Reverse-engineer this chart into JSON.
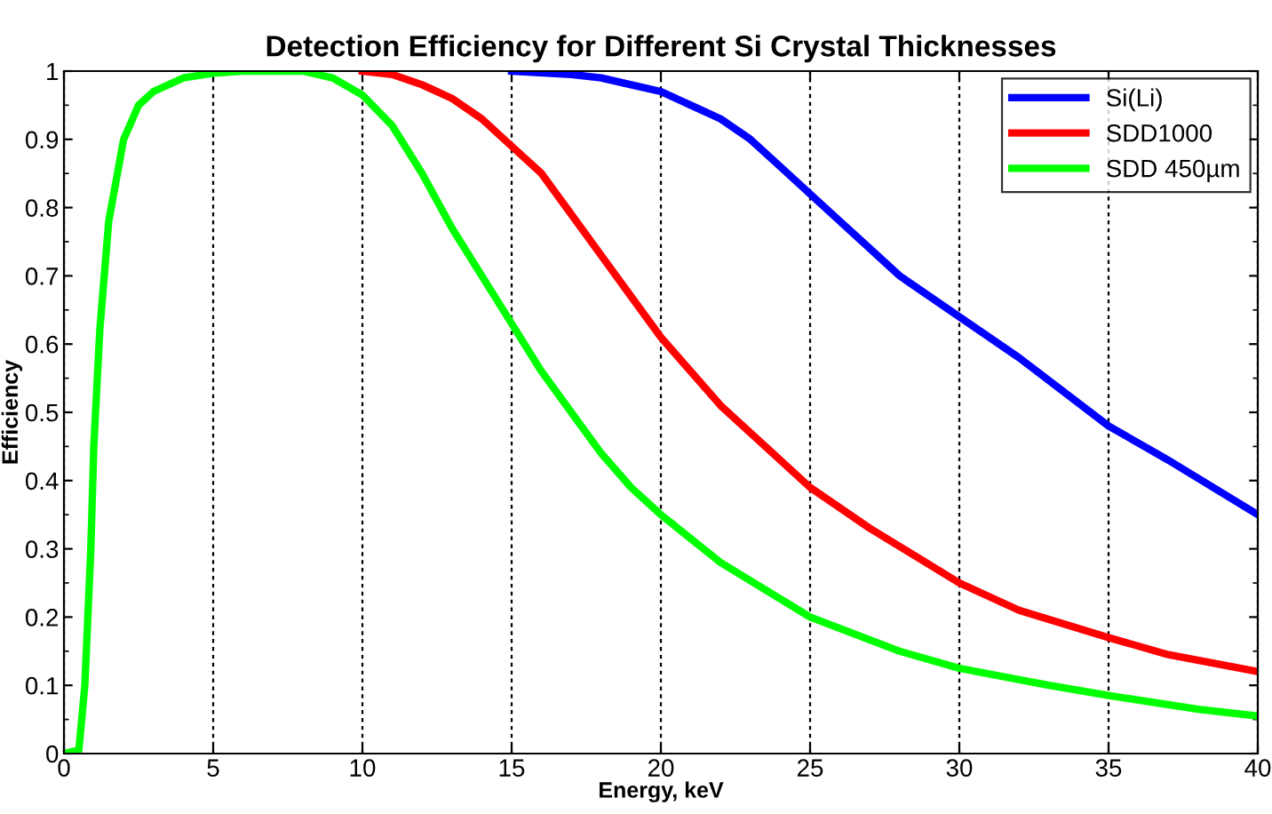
{
  "chart_data": {
    "type": "line",
    "title": "Detection Efficiency for Different Si Crystal Thicknesses",
    "xlabel": "Energy, keV",
    "ylabel": "Efficiency",
    "xlim": [
      0,
      40
    ],
    "ylim": [
      0,
      1
    ],
    "xticks": [
      0,
      5,
      10,
      15,
      20,
      25,
      30,
      35,
      40
    ],
    "yticks": [
      0,
      0.1,
      0.2,
      0.3,
      0.4,
      0.5,
      0.6,
      0.7,
      0.8,
      0.9,
      1
    ],
    "grid": "x",
    "legend": "top right",
    "line_style": "solid",
    "marker": "none",
    "series": [
      {
        "name": "Si(Li)",
        "color": "#0000ff",
        "x": [
          15,
          17,
          18,
          19,
          20,
          21,
          22,
          23,
          24,
          25,
          26,
          27,
          28,
          30,
          32,
          35,
          37,
          40
        ],
        "values": [
          1,
          0.995,
          0.99,
          0.98,
          0.97,
          0.95,
          0.93,
          0.9,
          0.86,
          0.82,
          0.78,
          0.74,
          0.7,
          0.64,
          0.58,
          0.48,
          0.43,
          0.35
        ]
      },
      {
        "name": "SDD1000",
        "color": "#ff0000",
        "x": [
          10,
          11,
          12,
          13,
          14,
          15,
          16,
          17,
          18,
          19,
          20,
          22,
          24,
          25,
          27,
          30,
          32,
          35,
          37,
          40
        ],
        "values": [
          1,
          0.995,
          0.98,
          0.96,
          0.93,
          0.89,
          0.85,
          0.79,
          0.73,
          0.67,
          0.61,
          0.51,
          0.43,
          0.39,
          0.33,
          0.25,
          0.21,
          0.17,
          0.145,
          0.12
        ]
      },
      {
        "name": "SDD 450µm",
        "color": "#00ff00",
        "x": [
          0,
          0.5,
          0.7,
          0.9,
          1,
          1.2,
          1.5,
          2,
          2.5,
          3,
          4,
          5,
          6,
          8,
          9,
          10,
          11,
          12,
          13,
          14,
          15,
          16,
          17,
          18,
          19,
          20,
          22,
          25,
          28,
          30,
          33,
          35,
          38,
          40
        ],
        "values": [
          0,
          0.005,
          0.1,
          0.3,
          0.45,
          0.62,
          0.78,
          0.9,
          0.95,
          0.97,
          0.99,
          0.997,
          1,
          1,
          0.99,
          0.965,
          0.92,
          0.85,
          0.77,
          0.7,
          0.63,
          0.56,
          0.5,
          0.44,
          0.39,
          0.35,
          0.28,
          0.2,
          0.15,
          0.125,
          0.1,
          0.085,
          0.065,
          0.055
        ]
      }
    ]
  }
}
